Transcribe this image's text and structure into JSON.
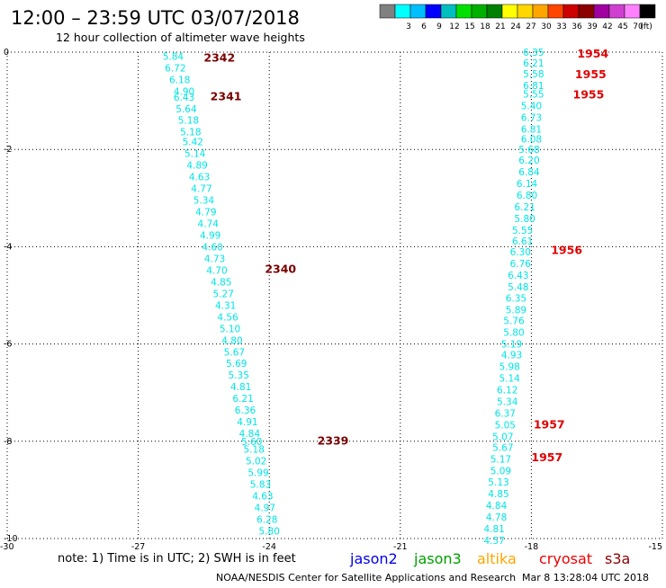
{
  "header": {
    "title": "12:00 – 23:59 UTC 03/07/2018",
    "subtitle": "12 hour collection of altimeter wave heights"
  },
  "colorbar": {
    "unit": "(ft)",
    "swatches": [
      {
        "color": "#808080",
        "label": ""
      },
      {
        "color": "#00ffff",
        "label": "3"
      },
      {
        "color": "#00bfff",
        "label": "6"
      },
      {
        "color": "#0000ff",
        "label": "9"
      },
      {
        "color": "#00bfbf",
        "label": "12"
      },
      {
        "color": "#00e000",
        "label": "15"
      },
      {
        "color": "#00b000",
        "label": "18"
      },
      {
        "color": "#008000",
        "label": "21"
      },
      {
        "color": "#ffff00",
        "label": "24"
      },
      {
        "color": "#ffd700",
        "label": "27"
      },
      {
        "color": "#ffa500",
        "label": "30"
      },
      {
        "color": "#ff4500",
        "label": "33"
      },
      {
        "color": "#cc0000",
        "label": "36"
      },
      {
        "color": "#8b0000",
        "label": "39"
      },
      {
        "color": "#a000a0",
        "label": "42"
      },
      {
        "color": "#d040d0",
        "label": "45"
      },
      {
        "color": "#ff80ff",
        "label": "70"
      },
      {
        "color": "#000000",
        "label": ""
      }
    ]
  },
  "chart_data": {
    "type": "scatter",
    "title": "12:00 – 23:59 UTC 03/07/2018",
    "subtitle": "12 hour collection of altimeter wave heights",
    "xlim": [
      -30,
      -15
    ],
    "ylim": [
      -10,
      0
    ],
    "x_ticks": [
      "-30",
      "-27",
      "-24",
      "-21",
      "-18",
      "-15"
    ],
    "y_ticks": [
      "0",
      "-2",
      "-4",
      "-6",
      "-8",
      "-10"
    ],
    "grid": true,
    "series": [
      {
        "name": "cryosat",
        "color": "#00e5e5",
        "points": [
          {
            "x": -26.2,
            "y": -0.08,
            "v": "5.84"
          },
          {
            "x": -26.15,
            "y": -0.32,
            "v": "6.72"
          },
          {
            "x": -26.05,
            "y": -0.56,
            "v": "6.18"
          },
          {
            "x": -25.95,
            "y": -0.8,
            "v": "4.90"
          },
          {
            "x": -25.95,
            "y": -0.92,
            "v": "6.43"
          },
          {
            "x": -25.9,
            "y": -1.16,
            "v": "5.64"
          },
          {
            "x": -25.85,
            "y": -1.4,
            "v": "5.18"
          },
          {
            "x": -25.8,
            "y": -1.64,
            "v": "5.18"
          },
          {
            "x": -25.75,
            "y": -1.84,
            "v": "5.42"
          },
          {
            "x": -25.7,
            "y": -2.08,
            "v": "5.14"
          },
          {
            "x": -25.65,
            "y": -2.32,
            "v": "4.89"
          },
          {
            "x": -25.6,
            "y": -2.56,
            "v": "4.63"
          },
          {
            "x": -25.55,
            "y": -2.8,
            "v": "4.77"
          },
          {
            "x": -25.5,
            "y": -3.04,
            "v": "5.34"
          },
          {
            "x": -25.45,
            "y": -3.28,
            "v": "4.79"
          },
          {
            "x": -25.4,
            "y": -3.52,
            "v": "4.74"
          },
          {
            "x": -25.35,
            "y": -3.76,
            "v": "4.99"
          },
          {
            "x": -25.3,
            "y": -4.0,
            "v": "4.60"
          },
          {
            "x": -25.25,
            "y": -4.24,
            "v": "4.73"
          },
          {
            "x": -25.2,
            "y": -4.48,
            "v": "4.70"
          },
          {
            "x": -25.1,
            "y": -4.72,
            "v": "4.85"
          },
          {
            "x": -25.05,
            "y": -4.96,
            "v": "5.27"
          },
          {
            "x": -25.0,
            "y": -5.2,
            "v": "4.31"
          },
          {
            "x": -24.95,
            "y": -5.44,
            "v": "4.56"
          },
          {
            "x": -24.9,
            "y": -5.68,
            "v": "5.10"
          },
          {
            "x": -24.85,
            "y": -5.92,
            "v": "4.80"
          },
          {
            "x": -24.8,
            "y": -6.16,
            "v": "5.67"
          },
          {
            "x": -24.75,
            "y": -6.4,
            "v": "5.69"
          },
          {
            "x": -24.7,
            "y": -6.64,
            "v": "5.35"
          },
          {
            "x": -24.65,
            "y": -6.88,
            "v": "4.81"
          },
          {
            "x": -24.6,
            "y": -7.12,
            "v": "6.21"
          },
          {
            "x": -24.55,
            "y": -7.36,
            "v": "6.36"
          },
          {
            "x": -24.5,
            "y": -7.6,
            "v": "4.91"
          },
          {
            "x": -24.45,
            "y": -7.84,
            "v": "4.84"
          },
          {
            "x": -24.4,
            "y": -8.0,
            "v": "5.60"
          },
          {
            "x": -24.35,
            "y": -8.16,
            "v": "5.18"
          },
          {
            "x": -24.3,
            "y": -8.4,
            "v": "5.02"
          },
          {
            "x": -24.25,
            "y": -8.64,
            "v": "5.99"
          },
          {
            "x": -24.2,
            "y": -8.88,
            "v": "5.83"
          },
          {
            "x": -24.15,
            "y": -9.12,
            "v": "4.63"
          },
          {
            "x": -24.1,
            "y": -9.36,
            "v": "4.97"
          },
          {
            "x": -24.05,
            "y": -9.6,
            "v": "6.28"
          },
          {
            "x": -24.0,
            "y": -9.84,
            "v": "5.80"
          }
        ]
      },
      {
        "name": "cryosat",
        "color": "#00e5e5",
        "points": [
          {
            "x": -17.95,
            "y": 0.0,
            "v": "6.35"
          },
          {
            "x": -17.95,
            "y": -0.22,
            "v": "6.21"
          },
          {
            "x": -17.95,
            "y": -0.44,
            "v": "5.58"
          },
          {
            "x": -17.95,
            "y": -0.68,
            "v": "6.81"
          },
          {
            "x": -17.95,
            "y": -0.86,
            "v": "5.55"
          },
          {
            "x": -18.0,
            "y": -1.1,
            "v": "5.40"
          },
          {
            "x": -18.0,
            "y": -1.34,
            "v": "6.73"
          },
          {
            "x": -18.0,
            "y": -1.58,
            "v": "6.81"
          },
          {
            "x": -18.0,
            "y": -1.78,
            "v": "6.08"
          },
          {
            "x": -18.05,
            "y": -2.0,
            "v": "5.68"
          },
          {
            "x": -18.05,
            "y": -2.22,
            "v": "6.20"
          },
          {
            "x": -18.05,
            "y": -2.46,
            "v": "6.84"
          },
          {
            "x": -18.1,
            "y": -2.7,
            "v": "6.14"
          },
          {
            "x": -18.1,
            "y": -2.94,
            "v": "6.80"
          },
          {
            "x": -18.15,
            "y": -3.18,
            "v": "6.21"
          },
          {
            "x": -18.15,
            "y": -3.42,
            "v": "5.80"
          },
          {
            "x": -18.2,
            "y": -3.66,
            "v": "5.55"
          },
          {
            "x": -18.2,
            "y": -3.88,
            "v": "6.61"
          },
          {
            "x": -18.25,
            "y": -4.1,
            "v": "6.30"
          },
          {
            "x": -18.25,
            "y": -4.34,
            "v": "6.76"
          },
          {
            "x": -18.3,
            "y": -4.58,
            "v": "6.43"
          },
          {
            "x": -18.3,
            "y": -4.82,
            "v": "5.48"
          },
          {
            "x": -18.35,
            "y": -5.06,
            "v": "6.35"
          },
          {
            "x": -18.35,
            "y": -5.3,
            "v": "5.89"
          },
          {
            "x": -18.4,
            "y": -5.52,
            "v": "5.76"
          },
          {
            "x": -18.4,
            "y": -5.76,
            "v": "5.80"
          },
          {
            "x": -18.45,
            "y": -6.0,
            "v": "5.19"
          },
          {
            "x": -18.45,
            "y": -6.22,
            "v": "4.93"
          },
          {
            "x": -18.5,
            "y": -6.46,
            "v": "5.98"
          },
          {
            "x": -18.5,
            "y": -6.7,
            "v": "5.14"
          },
          {
            "x": -18.55,
            "y": -6.94,
            "v": "6.12"
          },
          {
            "x": -18.55,
            "y": -7.18,
            "v": "5.34"
          },
          {
            "x": -18.6,
            "y": -7.42,
            "v": "6.37"
          },
          {
            "x": -18.6,
            "y": -7.66,
            "v": "5.05"
          },
          {
            "x": -18.65,
            "y": -7.9,
            "v": "5.07"
          },
          {
            "x": -18.65,
            "y": -8.12,
            "v": "5.67"
          },
          {
            "x": -18.7,
            "y": -8.36,
            "v": "5.17"
          },
          {
            "x": -18.7,
            "y": -8.6,
            "v": "5.09"
          },
          {
            "x": -18.75,
            "y": -8.84,
            "v": "5.13"
          },
          {
            "x": -18.75,
            "y": -9.08,
            "v": "4.85"
          },
          {
            "x": -18.8,
            "y": -9.32,
            "v": "4.84"
          },
          {
            "x": -18.8,
            "y": -9.56,
            "v": "4.78"
          },
          {
            "x": -18.85,
            "y": -9.8,
            "v": "4.81"
          },
          {
            "x": -18.85,
            "y": -10.04,
            "v": "4.57"
          }
        ]
      }
    ],
    "time_labels": [
      {
        "text": "2342",
        "x": -25.5,
        "y": -0.1,
        "color": "#7a0000"
      },
      {
        "text": "2341",
        "x": -25.35,
        "y": -0.9,
        "color": "#7a0000"
      },
      {
        "text": "2340",
        "x": -24.1,
        "y": -4.45,
        "color": "#7a0000"
      },
      {
        "text": "2339",
        "x": -22.9,
        "y": -7.98,
        "color": "#7a0000"
      },
      {
        "text": "1954",
        "x": -16.95,
        "y": -0.02,
        "color": "#e00000"
      },
      {
        "text": "1955",
        "x": -17.0,
        "y": -0.44,
        "color": "#e00000"
      },
      {
        "text": "1955",
        "x": -17.05,
        "y": -0.86,
        "color": "#e00000"
      },
      {
        "text": "1956",
        "x": -17.55,
        "y": -4.06,
        "color": "#e00000"
      },
      {
        "text": "1957",
        "x": -17.95,
        "y": -7.64,
        "color": "#e00000"
      },
      {
        "text": "1957",
        "x": -18.0,
        "y": -8.32,
        "color": "#e00000"
      }
    ]
  },
  "footer": {
    "note": "note:  1) Time is in UTC;  2) SWH is in feet",
    "credit": "NOAA/NESDIS Center for Satellite Applications and Research",
    "timestamp": "Mar  8 13:28:04 UTC 2018",
    "legend": [
      {
        "label": "jason2",
        "color": "#0000ee"
      },
      {
        "label": "jason3",
        "color": "#00a000"
      },
      {
        "label": "altika",
        "color": "#ffa500"
      },
      {
        "label": "cryosat",
        "color": "#ee0000"
      },
      {
        "label": "s3a",
        "color": "#8b0000"
      }
    ]
  }
}
